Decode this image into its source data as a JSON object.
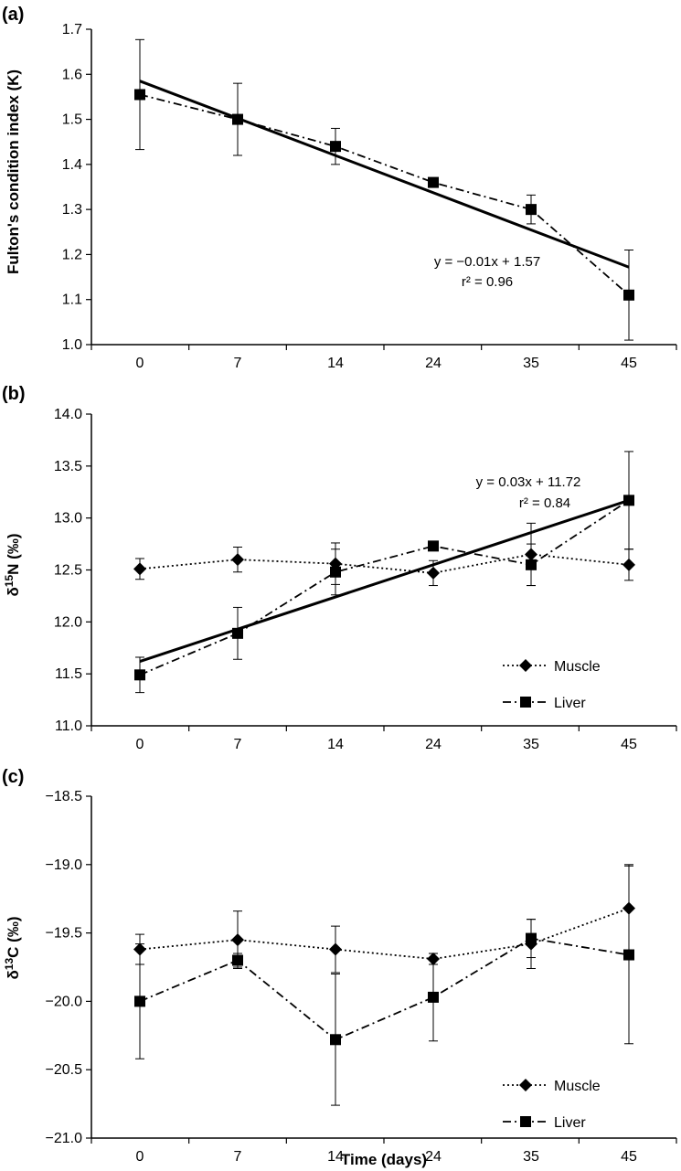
{
  "chart_data": [
    {
      "type": "line",
      "panel_label": "(a)",
      "ylabel": "Fulton's condition index (K)",
      "xlabel": "",
      "categories": [
        "0",
        "7",
        "14",
        "24",
        "35",
        "45"
      ],
      "ylim": [
        1.0,
        1.7
      ],
      "yticks": [
        "1.0",
        "1.1",
        "1.2",
        "1.3",
        "1.4",
        "1.5",
        "1.6",
        "1.7"
      ],
      "series": [
        {
          "name": "",
          "marker": "square",
          "line": "dashdot",
          "values": [
            1.555,
            1.5,
            1.44,
            1.36,
            1.3,
            1.11
          ],
          "errors": [
            0.122,
            0.08,
            0.04,
            0.0,
            0.032,
            0.1
          ]
        }
      ],
      "regression": {
        "start": 1.585,
        "end": 1.172,
        "equation": "y = −0.01x + 1.57",
        "r2": "r² = 0.96"
      },
      "legend": []
    },
    {
      "type": "line",
      "panel_label": "(b)",
      "ylabel_prefix": "δ",
      "ylabel_sup": "15",
      "ylabel_suffix": "N (‰)",
      "xlabel": "",
      "categories": [
        "0",
        "7",
        "14",
        "24",
        "35",
        "45"
      ],
      "ylim": [
        11.0,
        14.0
      ],
      "yticks": [
        "11.0",
        "11.5",
        "12.0",
        "12.5",
        "13.0",
        "13.5",
        "14.0"
      ],
      "series": [
        {
          "name": "Muscle",
          "marker": "diamond",
          "line": "dotted",
          "values": [
            12.51,
            12.6,
            12.56,
            12.47,
            12.65,
            12.55
          ],
          "errors": [
            0.1,
            0.12,
            0.2,
            0.12,
            0.3,
            0.15
          ]
        },
        {
          "name": "Liver",
          "marker": "square",
          "line": "dashdot",
          "values": [
            11.49,
            11.89,
            12.48,
            12.73,
            12.55,
            13.17
          ],
          "errors": [
            0.17,
            0.25,
            0.22,
            0.04,
            0.2,
            0.47
          ]
        }
      ],
      "regression": {
        "start": 11.62,
        "end": 13.17,
        "equation": "y = 0.03x + 11.72",
        "r2": "r² = 0.84"
      },
      "legend": [
        "Muscle",
        "Liver"
      ]
    },
    {
      "type": "line",
      "panel_label": "(c)",
      "ylabel_prefix": "δ",
      "ylabel_sup": "13",
      "ylabel_suffix": "C (‰)",
      "xlabel": "Time (days)",
      "categories": [
        "0",
        "7",
        "14",
        "24",
        "35",
        "45"
      ],
      "ylim": [
        -21.0,
        -18.5
      ],
      "yticks": [
        "−21.0",
        "−20.5",
        "−20.0",
        "−19.5",
        "−19.0",
        "−18.5"
      ],
      "series": [
        {
          "name": "Muscle",
          "marker": "diamond",
          "line": "dotted",
          "values": [
            -19.62,
            -19.55,
            -19.62,
            -19.69,
            -19.58,
            -19.32
          ],
          "errors": [
            0.11,
            0.21,
            0.17,
            0.04,
            0.18,
            0.32
          ]
        },
        {
          "name": "Liver",
          "marker": "square",
          "line": "dashdot",
          "values": [
            -20.0,
            -19.7,
            -20.28,
            -19.97,
            -19.54,
            -19.66
          ],
          "errors": [
            0.42,
            0.05,
            0.48,
            0.32,
            0.14,
            0.65
          ]
        }
      ],
      "regression": null,
      "legend": [
        "Muscle",
        "Liver"
      ]
    }
  ]
}
